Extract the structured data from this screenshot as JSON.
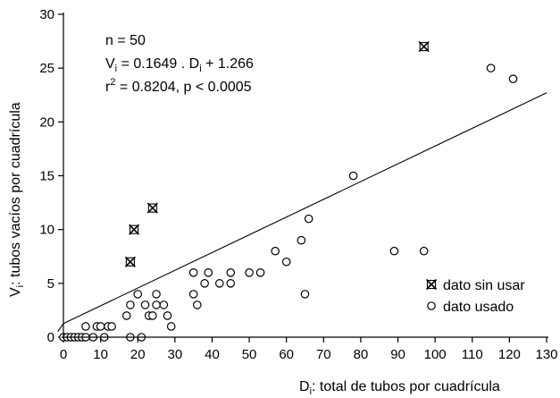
{
  "chart_data": {
    "type": "scatter",
    "xlabel": {
      "main": "D",
      "sub": "i",
      "rest": ": total de tubos por cuadrícula"
    },
    "ylabel": {
      "main": "V",
      "sub": "i",
      "rest": ": tubos vacíos por cuadrícula"
    },
    "xlim": [
      0,
      130
    ],
    "ylim": [
      0,
      30
    ],
    "xticks": [
      0,
      10,
      20,
      30,
      40,
      50,
      60,
      70,
      80,
      90,
      100,
      110,
      120,
      130
    ],
    "yticks": [
      0,
      5,
      10,
      15,
      20,
      25,
      30
    ],
    "grid": false,
    "legend_position": "bottom-right",
    "annotations": {
      "n": {
        "text": "n = 50"
      },
      "equation": {
        "v": "V",
        "v_sub": "i",
        "mid": " = 0.1649 . D",
        "d_sub": "i",
        "end": " + 1.266"
      },
      "r2": {
        "r": "r",
        "sup": "2",
        "rest": " = 0.8204, p < 0.0005"
      }
    },
    "regression": {
      "slope": 0.1649,
      "intercept": 1.266,
      "x_range": [
        0,
        130
      ]
    },
    "series": [
      {
        "name": "dato usado",
        "marker": "open-circle",
        "points": [
          [
            0,
            0
          ],
          [
            1,
            0
          ],
          [
            2,
            0
          ],
          [
            3,
            0
          ],
          [
            4,
            0
          ],
          [
            5,
            0
          ],
          [
            6,
            0
          ],
          [
            8,
            0
          ],
          [
            11,
            0
          ],
          [
            18,
            0
          ],
          [
            21,
            0
          ],
          [
            6,
            1
          ],
          [
            9,
            1
          ],
          [
            10,
            1
          ],
          [
            12,
            1
          ],
          [
            13,
            1
          ],
          [
            29,
            1
          ],
          [
            17,
            2
          ],
          [
            23,
            2
          ],
          [
            24,
            2
          ],
          [
            28,
            2
          ],
          [
            18,
            3
          ],
          [
            22,
            3
          ],
          [
            25,
            3
          ],
          [
            27,
            3
          ],
          [
            36,
            3
          ],
          [
            20,
            4
          ],
          [
            25,
            4
          ],
          [
            35,
            4
          ],
          [
            65,
            4
          ],
          [
            38,
            5
          ],
          [
            42,
            5
          ],
          [
            45,
            5
          ],
          [
            35,
            6
          ],
          [
            39,
            6
          ],
          [
            45,
            6
          ],
          [
            50,
            6
          ],
          [
            53,
            6
          ],
          [
            60,
            7
          ],
          [
            57,
            8
          ],
          [
            89,
            8
          ],
          [
            97,
            8
          ],
          [
            64,
            9
          ],
          [
            66,
            11
          ],
          [
            78,
            15
          ],
          [
            115,
            25
          ],
          [
            121,
            24
          ]
        ]
      },
      {
        "name": "dato sin usar",
        "marker": "boxed-x",
        "points": [
          [
            18,
            7
          ],
          [
            19,
            10
          ],
          [
            24,
            12
          ],
          [
            97,
            27
          ]
        ]
      }
    ]
  }
}
